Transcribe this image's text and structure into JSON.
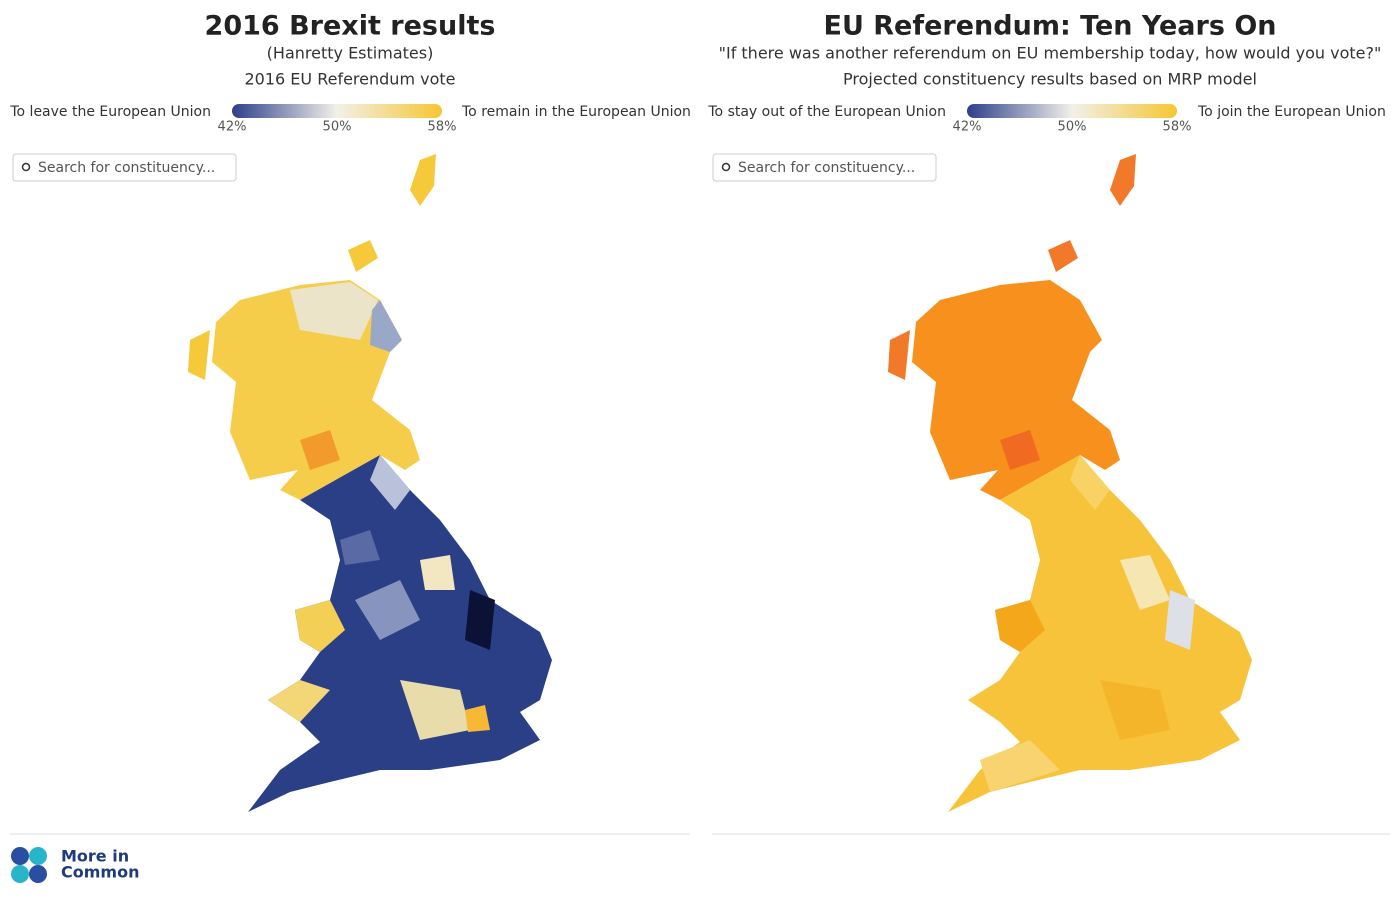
{
  "panels": [
    {
      "title": "2016 Brexit results",
      "subtitle": "(Hanretty Estimates)",
      "caption": "2016 EU Referendum vote",
      "legend": {
        "left": "To leave the European Union",
        "right": "To remain in the European Union",
        "ticks": [
          "42%",
          "50%",
          "58%"
        ]
      },
      "search_placeholder": "Search for constituency..."
    },
    {
      "title": "EU Referendum: Ten Years On",
      "subtitle": "\"If there was another referendum on EU membership today, how would you vote?\"",
      "caption": "Projected constituency results based on MRP model",
      "legend": {
        "left": "To stay out of the European Union",
        "right": "To join the European Union",
        "ticks": [
          "42%",
          "50%",
          "58%"
        ]
      },
      "search_placeholder": "Search for constituency..."
    }
  ],
  "footer": {
    "brand": [
      "More in",
      "Common"
    ]
  }
}
